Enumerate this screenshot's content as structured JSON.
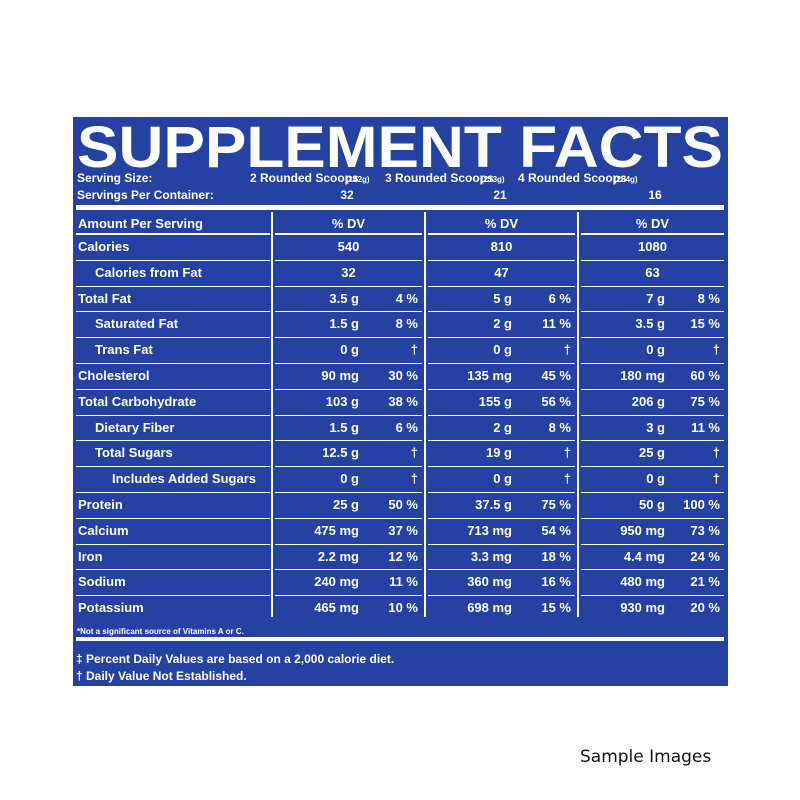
{
  "title": "SUPPLEMENT FACTS",
  "serving_size_label": "Serving Size:",
  "servings_label": "Servings Per Container:",
  "servings": [
    {
      "size": "2 Rounded Scoops",
      "grams": "(142g)",
      "per_container": "32"
    },
    {
      "size": "3 Rounded Scoops",
      "grams": "(213g)",
      "per_container": "21"
    },
    {
      "size": "4 Rounded Scoops",
      "grams": "(284g)",
      "per_container": "16"
    }
  ],
  "header": [
    "Amount Per Serving",
    "% DV",
    "% DV",
    "% DV"
  ],
  "rows": [
    {
      "label": "Calories",
      "cells": [
        [
          "540"
        ],
        [
          "810"
        ],
        [
          "1080"
        ]
      ]
    },
    {
      "label": "Calories from Fat",
      "cells": [
        [
          "32"
        ],
        [
          "47"
        ],
        [
          "63"
        ]
      ]
    },
    {
      "label": "Total Fat",
      "cells": [
        [
          "3.5 g",
          "4 %"
        ],
        [
          "5 g",
          "6 %"
        ],
        [
          "7 g",
          "8 %"
        ]
      ]
    },
    {
      "label": "Saturated Fat",
      "cells": [
        [
          "1.5 g",
          "8 %"
        ],
        [
          "2 g",
          "11 %"
        ],
        [
          "3.5 g",
          "15 %"
        ]
      ]
    },
    {
      "label": "Trans Fat",
      "cells": [
        [
          "0 g",
          "†"
        ],
        [
          "0 g",
          "†"
        ],
        [
          "0 g",
          "†"
        ]
      ]
    },
    {
      "label": "Cholesterol",
      "cells": [
        [
          "90 mg",
          "30 %"
        ],
        [
          "135 mg",
          "45 %"
        ],
        [
          "180 mg",
          "60 %"
        ]
      ]
    },
    {
      "label": "Total Carbohydrate",
      "cells": [
        [
          "103 g",
          "38 %"
        ],
        [
          "155 g",
          "56 %"
        ],
        [
          "206 g",
          "75 %"
        ]
      ]
    },
    {
      "label": "Dietary Fiber",
      "cells": [
        [
          "1.5 g",
          "6 %"
        ],
        [
          "2 g",
          "8 %"
        ],
        [
          "3 g",
          "11 %"
        ]
      ]
    },
    {
      "label": "Total Sugars",
      "cells": [
        [
          "12.5 g",
          "†"
        ],
        [
          "19 g",
          "†"
        ],
        [
          "25 g",
          "†"
        ]
      ]
    },
    {
      "label": "Includes Added Sugars",
      "cells": [
        [
          "0 g",
          "†"
        ],
        [
          "0 g",
          "†"
        ],
        [
          "0 g",
          "†"
        ]
      ]
    },
    {
      "label": "Protein",
      "cells": [
        [
          "25 g",
          "50 %"
        ],
        [
          "37.5 g",
          "75 %"
        ],
        [
          "50 g",
          "100 %"
        ]
      ]
    },
    {
      "label": "Calcium",
      "cells": [
        [
          "475 mg",
          "37 %"
        ],
        [
          "713 mg",
          "54 %"
        ],
        [
          "950 mg",
          "73 %"
        ]
      ]
    },
    {
      "label": "Iron",
      "cells": [
        [
          "2.2 mg",
          "12 %"
        ],
        [
          "3.3 mg",
          "18 %"
        ],
        [
          "4.4 mg",
          "24 %"
        ]
      ]
    },
    {
      "label": "Sodium",
      "cells": [
        [
          "240 mg",
          "11 %"
        ],
        [
          "360 mg",
          "16 %"
        ],
        [
          "480 mg",
          "21 %"
        ]
      ]
    },
    {
      "label": "Potassium",
      "cells": [
        [
          "465 mg",
          "10 %"
        ],
        [
          "698 mg",
          "15 %"
        ],
        [
          "930 mg",
          "20 %"
        ]
      ]
    }
  ],
  "footnote_vitamins": "*Not a significant source of Vitamins A or C.",
  "footnotes": [
    "‡ Percent Daily Values are based on a 2,000 calorie diet.",
    "† Daily Value Not Established."
  ],
  "caption": "Sample Images"
}
